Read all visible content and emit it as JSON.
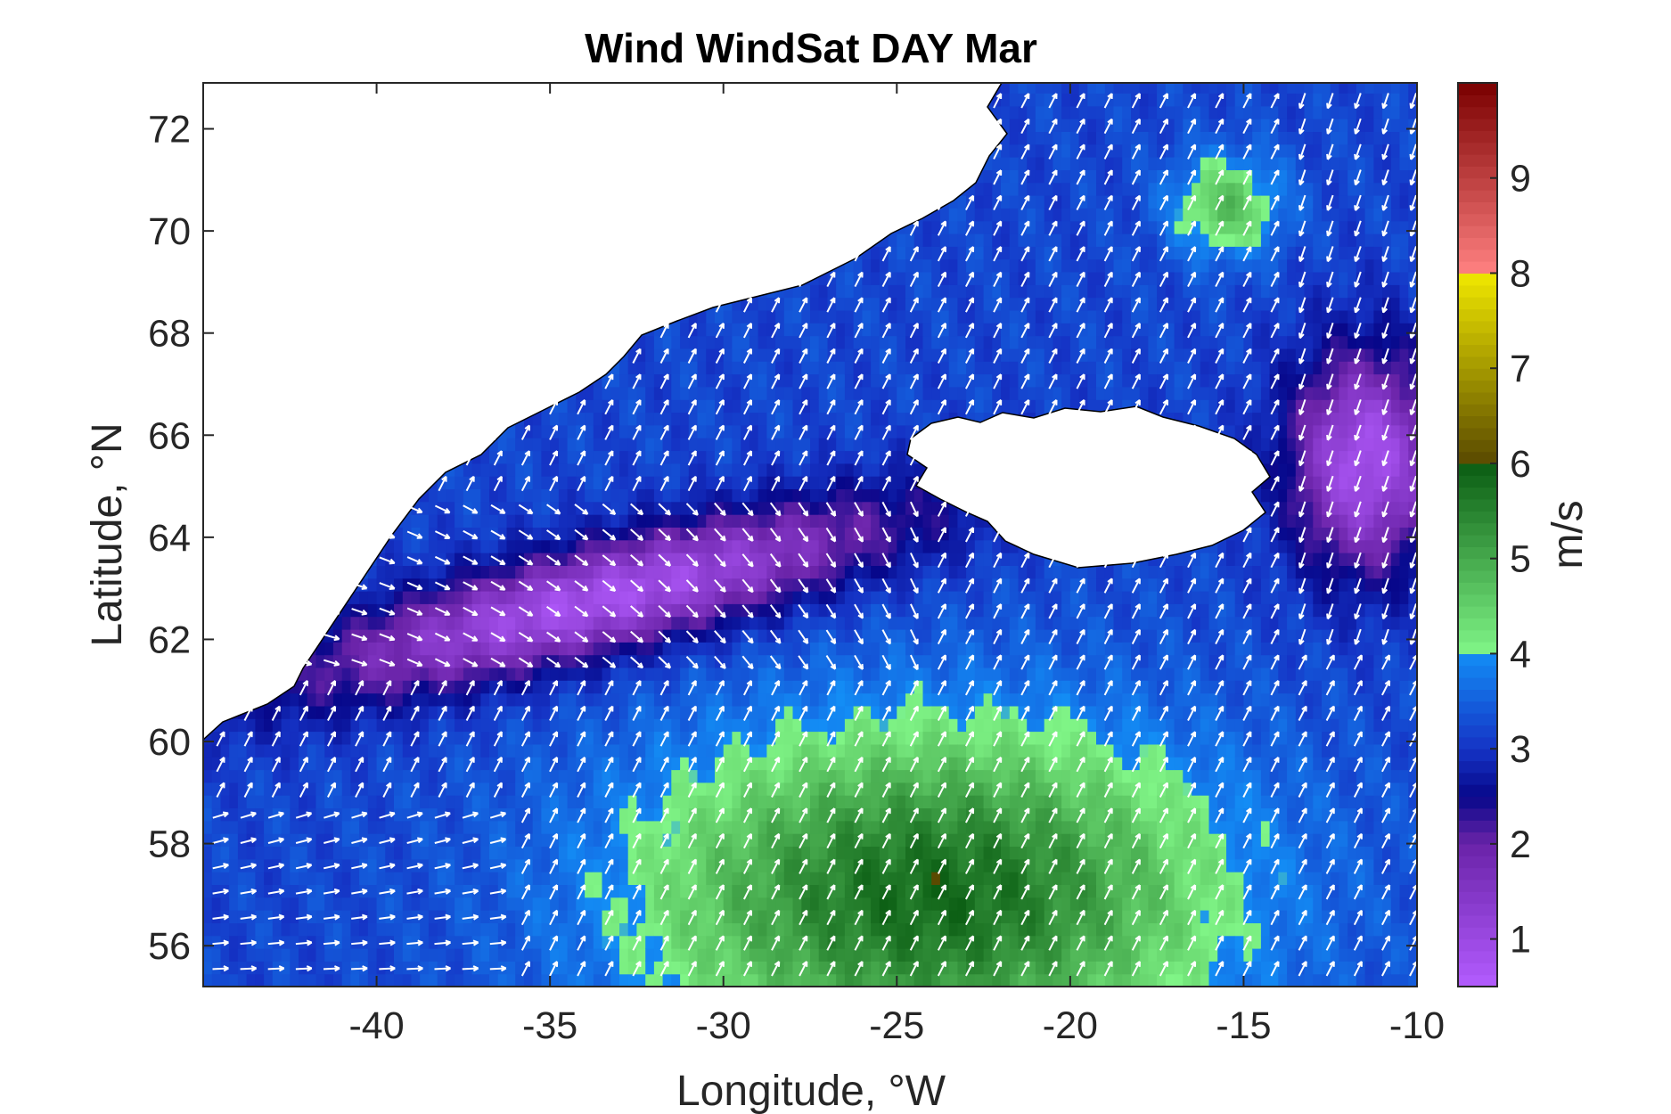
{
  "chart_data": {
    "type": "heatmap",
    "title": "Wind WindSat DAY Mar",
    "xlabel": "Longitude, °W",
    "ylabel": "Latitude, °N",
    "xlim": [
      -45,
      -10
    ],
    "ylim": [
      55.2,
      72.9
    ],
    "x_ticks": [
      -40,
      -35,
      -30,
      -25,
      -20,
      -15,
      -10
    ],
    "x_tick_labels": [
      "-40",
      "-35",
      "-30",
      "-25",
      "-20",
      "-15",
      "-10"
    ],
    "y_ticks": [
      56,
      58,
      60,
      62,
      64,
      66,
      68,
      70,
      72
    ],
    "y_tick_labels": [
      "56",
      "58",
      "60",
      "62",
      "64",
      "66",
      "68",
      "70",
      "72"
    ],
    "colorbar": {
      "label": "m/s",
      "range": [
        0.5,
        10
      ],
      "ticks": [
        1,
        2,
        3,
        4,
        5,
        6,
        7,
        8,
        9
      ],
      "tick_labels": [
        "1",
        "2",
        "3",
        "4",
        "5",
        "6",
        "7",
        "8",
        "9"
      ],
      "stops": [
        {
          "value": 0.5,
          "color": "#b35cff"
        },
        {
          "value": 2.0,
          "color": "#6a23a8"
        },
        {
          "value": 2.5,
          "color": "#07078a"
        },
        {
          "value": 3.0,
          "color": "#1533c5"
        },
        {
          "value": 4.0,
          "color": "#138df5"
        },
        {
          "value": 4.01,
          "color": "#80f587"
        },
        {
          "value": 6.0,
          "color": "#0a5c12"
        },
        {
          "value": 6.01,
          "color": "#5a4a00"
        },
        {
          "value": 8.0,
          "color": "#f0e800"
        },
        {
          "value": 8.01,
          "color": "#ff8080"
        },
        {
          "value": 10.0,
          "color": "#7a0000"
        }
      ]
    },
    "wind_features": [
      {
        "name": "low-wind band",
        "lon": -33.5,
        "lat": 62.8,
        "speed": 0.8
      },
      {
        "name": "low-wind zone east of Iceland",
        "lon": -11.5,
        "lat": 65.5,
        "speed": 0.7
      },
      {
        "name": "moderate-wind region",
        "lon": -24,
        "lat": 57,
        "speed": 5.5
      },
      {
        "name": "northeast moderate patch",
        "lon": -15.5,
        "lat": 70.5,
        "speed": 4.7
      }
    ],
    "landmasses": [
      "Greenland",
      "Iceland"
    ],
    "grid": false,
    "vectors": "white arrows indicating wind direction"
  }
}
